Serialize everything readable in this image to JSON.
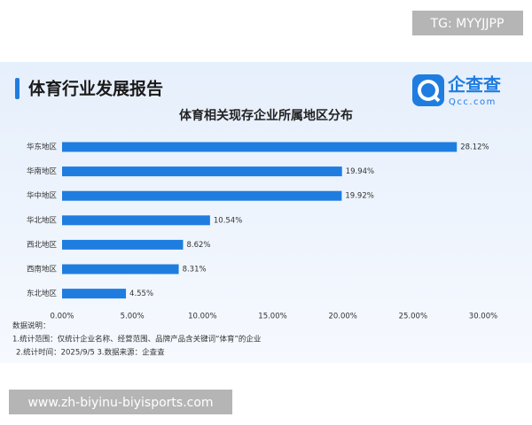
{
  "page": {
    "watermark_top": "TG: MYYJJPP",
    "header": "体育行业发展报告",
    "logo_name": "企查查",
    "logo_url": "Qcc.com",
    "notes": [
      "数据说明：",
      "1.统计范围：仅统计企业名称、经营范围、品牌产品含关键词“体育”的企业",
      "2.统计时间：2025/9/5 3.数据来源：企查查"
    ],
    "watermark_bottom": "www.zh-biyinu-biyisports.com"
  },
  "chart_data": {
    "type": "bar",
    "orientation": "horizontal",
    "title": "体育相关现存企业所属地区分布",
    "categories": [
      "华东地区",
      "华南地区",
      "华中地区",
      "华北地区",
      "西北地区",
      "西南地区",
      "东北地区"
    ],
    "values": [
      28.12,
      19.94,
      19.92,
      10.54,
      8.62,
      8.31,
      4.55
    ],
    "value_labels": [
      "28.12%",
      "19.94%",
      "19.92%",
      "10.54%",
      "8.62%",
      "8.31%",
      "4.55%"
    ],
    "color": "#1f7de0",
    "xlim": [
      0,
      30
    ],
    "xticks": [
      {
        "value": 0,
        "label": "0.00%"
      },
      {
        "value": 5,
        "label": "5.00%"
      },
      {
        "value": 10,
        "label": "10.00%"
      },
      {
        "value": 15,
        "label": "15.00%"
      },
      {
        "value": 20,
        "label": "20.00%"
      },
      {
        "value": 25,
        "label": "25.00%"
      },
      {
        "value": 30,
        "label": "30.00%"
      }
    ],
    "grid": false
  }
}
